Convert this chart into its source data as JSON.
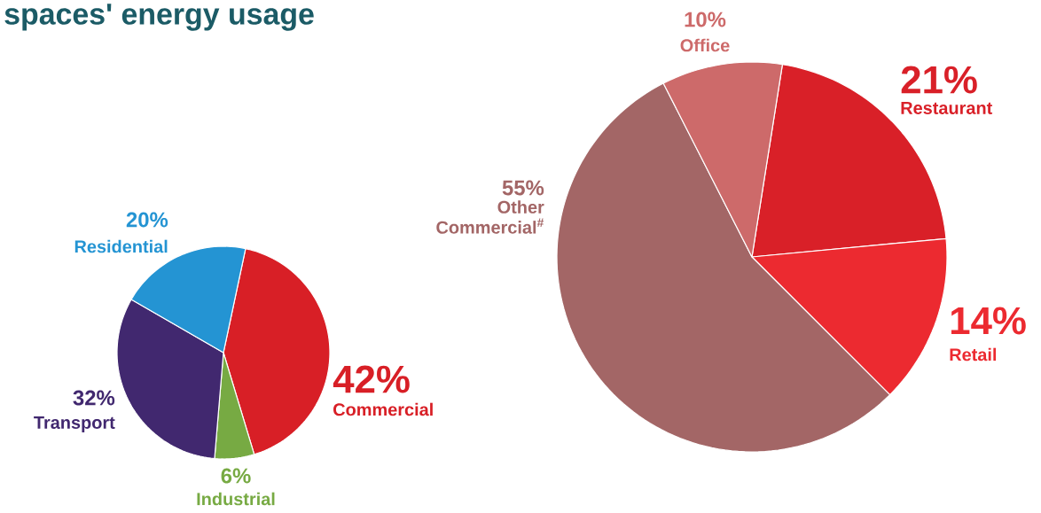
{
  "chart_data": [
    {
      "type": "pie",
      "title": "spaces' energy usage",
      "categories": [
        "Commercial",
        "Industrial",
        "Transport",
        "Residential"
      ],
      "values": [
        42,
        6,
        32,
        20
      ],
      "colors": [
        "#d81f26",
        "#77aa43",
        "#41286f",
        "#2494d3"
      ],
      "value_labels": [
        "42%",
        "6%",
        "32%",
        "20%"
      ]
    },
    {
      "type": "pie",
      "categories": [
        "Restaurant",
        "Retail",
        "Other Commercial$^{#}$",
        "Office"
      ],
      "values": [
        21,
        14,
        55,
        10
      ],
      "colors": [
        "#d92028",
        "#ec2a30",
        "#a36666",
        "#cd6a6a"
      ],
      "value_labels": [
        "21%",
        "14%",
        "55%",
        "10%"
      ]
    }
  ]
}
